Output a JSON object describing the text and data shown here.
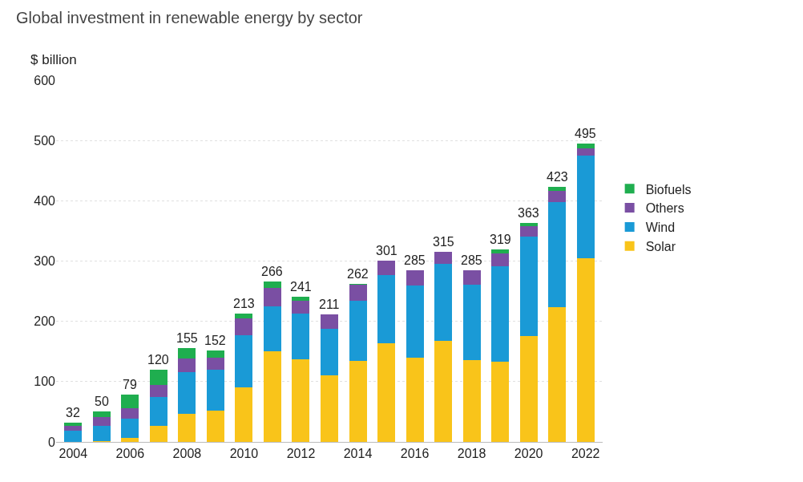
{
  "chart_data": {
    "type": "bar",
    "title": "Global investment in renewable energy by sector",
    "ylabel": "$ billion",
    "stacked": true,
    "categories": [
      "2004",
      null,
      "2006",
      null,
      "2008",
      null,
      "2010",
      null,
      "2012",
      null,
      "2014",
      null,
      "2016",
      null,
      "2018",
      null,
      "2020",
      null,
      "2022"
    ],
    "series": [
      {
        "name": "Solar",
        "color": "#f9c41a",
        "values": [
          0,
          1,
          6,
          27,
          47,
          52,
          91,
          150,
          137,
          110,
          135,
          164,
          140,
          168,
          136,
          133,
          176,
          223,
          304
        ]
      },
      {
        "name": "Wind",
        "color": "#1a9ad6",
        "values": [
          18,
          26,
          33,
          48,
          69,
          68,
          86,
          75,
          76,
          77,
          99,
          113,
          119,
          127,
          125,
          158,
          165,
          175,
          171
        ]
      },
      {
        "name": "Others",
        "color": "#7a4fa3",
        "values": [
          9,
          14,
          17,
          20,
          22,
          20,
          28,
          31,
          21,
          24,
          27,
          24,
          26,
          20,
          24,
          22,
          17,
          18,
          12
        ]
      },
      {
        "name": "Biofuels",
        "color": "#1fae4f",
        "values": [
          5,
          9,
          23,
          25,
          17,
          12,
          8,
          10,
          7,
          0,
          1,
          0,
          0,
          0,
          0,
          6,
          5,
          7,
          8
        ]
      }
    ],
    "totals": [
      "32",
      "50",
      "79",
      "120",
      "155",
      "152",
      "213",
      "266",
      "241",
      "211",
      "262",
      "301",
      "285",
      "315",
      "285",
      "319",
      "363",
      "423",
      "495"
    ],
    "ylim": [
      0,
      600
    ],
    "yticks": [
      0,
      100,
      200,
      300,
      400,
      500,
      600
    ],
    "grid": "y",
    "legend": "right"
  }
}
